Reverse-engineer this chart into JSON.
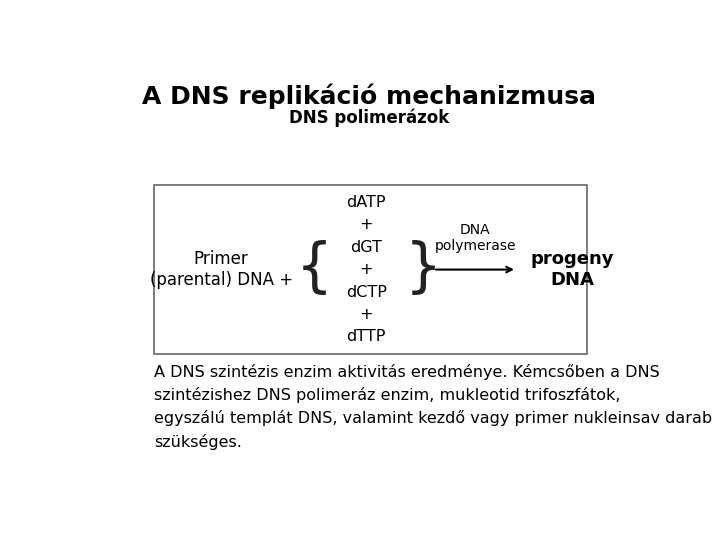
{
  "title": "A DNS replikáció mechanizmusa",
  "subtitle": "DNS polimerázok",
  "title_fontsize": 18,
  "subtitle_fontsize": 12,
  "bg_color": "#ffffff",
  "text_color": "#000000",
  "primer_text": "Primer\n(parental) DNA +",
  "nucleotides": [
    "dATP",
    "+",
    "dGT",
    "+",
    "dCTP",
    "+",
    "dTTP"
  ],
  "enzyme_text": "DNA\npolymerase",
  "product_text": "progeny\nDNA",
  "body_text": "A DNS szintézis enzim aktivitás eredménye. Kémcsőben a DNS\nszintézishez DNS polimeráz enzim, mukleotid trifoszfátok,\negyszálú templát DNS, valamint kezdő vagy primer nukleinsav darab\nszükséges.",
  "body_fontsize": 11.5
}
